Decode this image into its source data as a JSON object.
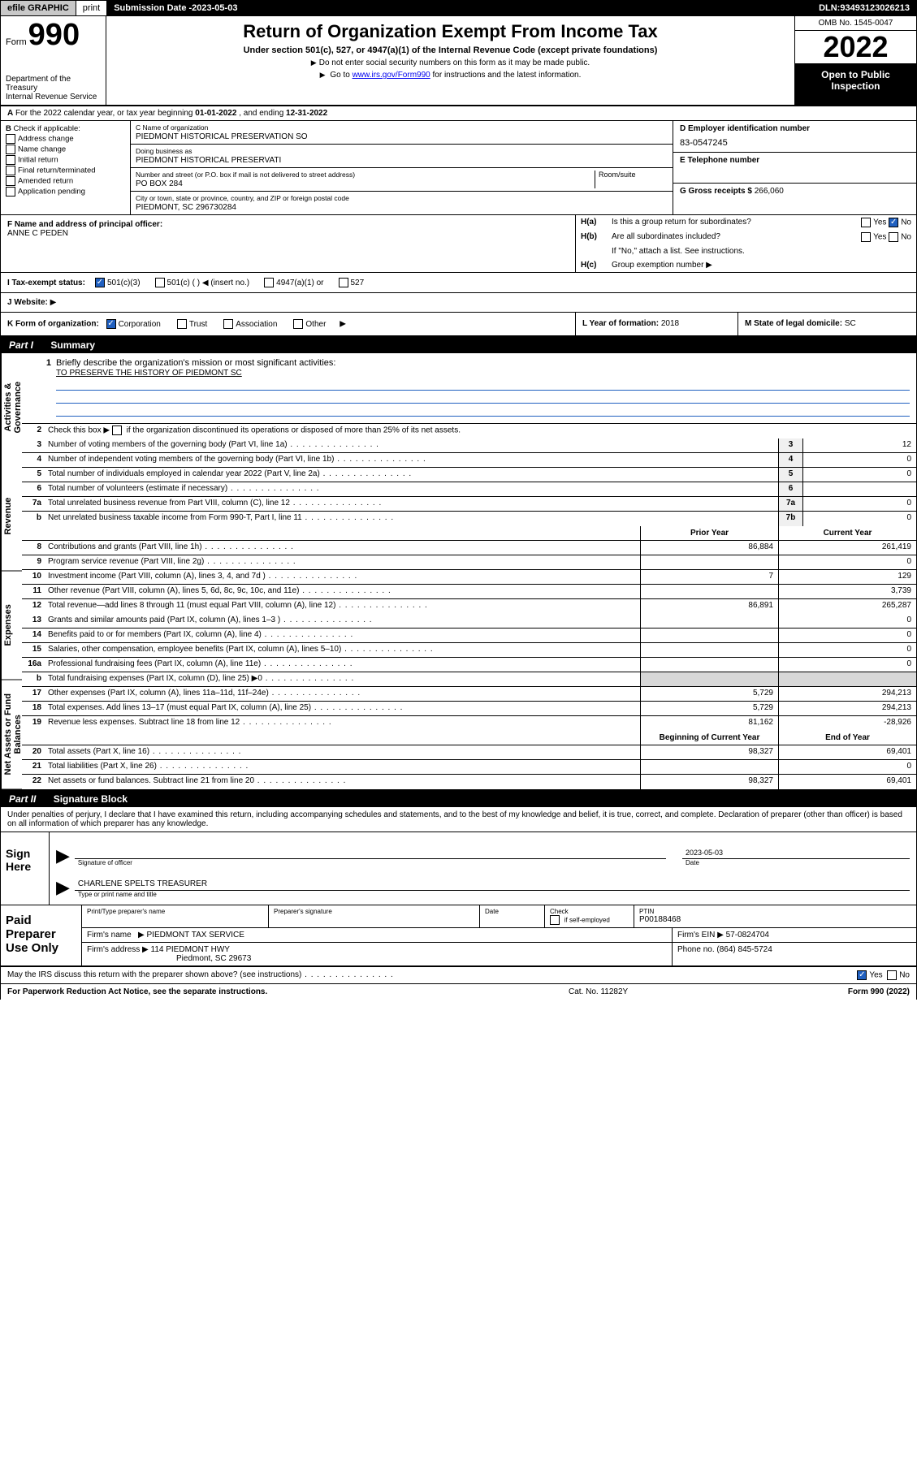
{
  "topbar": {
    "efile": "efile GRAPHIC",
    "print": "print",
    "submission_label": "Submission Date - ",
    "submission_date": "2023-05-03",
    "dln_label": "DLN: ",
    "dln": "93493123026213"
  },
  "header": {
    "form_word": "Form",
    "form_number": "990",
    "dept": "Department of the Treasury\nInternal Revenue Service",
    "title": "Return of Organization Exempt From Income Tax",
    "subtitle": "Under section 501(c), 527, or 4947(a)(1) of the Internal Revenue Code (except private foundations)",
    "note1": "Do not enter social security numbers on this form as it may be made public.",
    "note2_pre": "Go to ",
    "note2_link": "www.irs.gov/Form990",
    "note2_post": " for instructions and the latest information.",
    "omb": "OMB No. 1545-0047",
    "year": "2022",
    "open_public": "Open to Public Inspection"
  },
  "sectionA": {
    "text_pre": "For the 2022 calendar year, or tax year beginning ",
    "begin": "01-01-2022",
    "text_mid": " , and ending ",
    "end": "12-31-2022",
    "lead": "A"
  },
  "sectionB": {
    "lead": "B",
    "label": "Check if applicable:",
    "items": [
      "Address change",
      "Name change",
      "Initial return",
      "Final return/terminated",
      "Amended return",
      "Application pending"
    ]
  },
  "sectionC": {
    "name_lbl": "C Name of organization",
    "name": "PIEDMONT HISTORICAL PRESERVATION SO",
    "dba_lbl": "Doing business as",
    "dba": "PIEDMONT HISTORICAL PRESERVATI",
    "addr_lbl": "Number and street (or P.O. box if mail is not delivered to street address)",
    "room_lbl": "Room/suite",
    "addr": "PO BOX 284",
    "city_lbl": "City or town, state or province, country, and ZIP or foreign postal code",
    "city": "PIEDMONT, SC  296730284"
  },
  "sectionD": {
    "lbl": "D Employer identification number",
    "val": "83-0547245"
  },
  "sectionE": {
    "lbl": "E Telephone number",
    "val": ""
  },
  "sectionG": {
    "lbl": "G Gross receipts $",
    "val": "266,060"
  },
  "sectionF": {
    "lbl": "F  Name and address of principal officer:",
    "name": "ANNE C PEDEN"
  },
  "sectionH": {
    "ha_lbl": "H(a)",
    "ha_txt": "Is this a group return for subordinates?",
    "hb_lbl": "H(b)",
    "hb_txt": "Are all subordinates included?",
    "hb_note": "If \"No,\" attach a list. See instructions.",
    "hc_lbl": "H(c)",
    "hc_txt": "Group exemption number",
    "yes": "Yes",
    "no": "No",
    "ha_no_checked": true
  },
  "sectionI": {
    "lbl": "I  Tax-exempt status:",
    "opts": [
      "501(c)(3)",
      "501(c) (  ) ◀ (insert no.)",
      "4947(a)(1) or",
      "527"
    ],
    "checked_idx": 0
  },
  "sectionJ": {
    "lbl": "J  Website:",
    "arrow": "▶"
  },
  "sectionK": {
    "lbl": "K Form of organization:",
    "opts": [
      "Corporation",
      "Trust",
      "Association",
      "Other"
    ],
    "checked_idx": 0,
    "arrow": "▶"
  },
  "sectionL": {
    "lbl": "L Year of formation:",
    "val": "2018"
  },
  "sectionM": {
    "lbl": "M State of legal domicile:",
    "val": "SC"
  },
  "part1": {
    "hdr_part": "Part I",
    "hdr_title": "Summary",
    "sidetabs": [
      "Activities & Governance",
      "Revenue",
      "Expenses",
      "Net Assets or Fund Balances"
    ],
    "q1_num": "1",
    "q1": "Briefly describe the organization's mission or most significant activities:",
    "q1_ans": "TO PRESERVE THE HISTORY OF PIEDMONT SC",
    "q2_num": "2",
    "q2_pre": "Check this box",
    "q2_post": "if the organization discontinued its operations or disposed of more than 25% of its net assets.",
    "rows_gov": [
      {
        "n": "3",
        "d": "Number of voting members of the governing body (Part VI, line 1a)",
        "box": "3",
        "v": "12"
      },
      {
        "n": "4",
        "d": "Number of independent voting members of the governing body (Part VI, line 1b)",
        "box": "4",
        "v": "0"
      },
      {
        "n": "5",
        "d": "Total number of individuals employed in calendar year 2022 (Part V, line 2a)",
        "box": "5",
        "v": "0"
      },
      {
        "n": "6",
        "d": "Total number of volunteers (estimate if necessary)",
        "box": "6",
        "v": ""
      },
      {
        "n": "7a",
        "d": "Total unrelated business revenue from Part VIII, column (C), line 12",
        "box": "7a",
        "v": "0"
      },
      {
        "n": "b",
        "d": "Net unrelated business taxable income from Form 990-T, Part I, line 11",
        "box": "7b",
        "v": "0"
      }
    ],
    "col_prior": "Prior Year",
    "col_current": "Current Year",
    "rows_rev": [
      {
        "n": "8",
        "d": "Contributions and grants (Part VIII, line 1h)",
        "p": "86,884",
        "c": "261,419"
      },
      {
        "n": "9",
        "d": "Program service revenue (Part VIII, line 2g)",
        "p": "",
        "c": "0"
      },
      {
        "n": "10",
        "d": "Investment income (Part VIII, column (A), lines 3, 4, and 7d )",
        "p": "7",
        "c": "129"
      },
      {
        "n": "11",
        "d": "Other revenue (Part VIII, column (A), lines 5, 6d, 8c, 9c, 10c, and 11e)",
        "p": "",
        "c": "3,739"
      },
      {
        "n": "12",
        "d": "Total revenue—add lines 8 through 11 (must equal Part VIII, column (A), line 12)",
        "p": "86,891",
        "c": "265,287"
      }
    ],
    "rows_exp": [
      {
        "n": "13",
        "d": "Grants and similar amounts paid (Part IX, column (A), lines 1–3 )",
        "p": "",
        "c": "0"
      },
      {
        "n": "14",
        "d": "Benefits paid to or for members (Part IX, column (A), line 4)",
        "p": "",
        "c": "0"
      },
      {
        "n": "15",
        "d": "Salaries, other compensation, employee benefits (Part IX, column (A), lines 5–10)",
        "p": "",
        "c": "0"
      },
      {
        "n": "16a",
        "d": "Professional fundraising fees (Part IX, column (A), line 11e)",
        "p": "",
        "c": "0"
      },
      {
        "n": "b",
        "d": "Total fundraising expenses (Part IX, column (D), line 25) ▶0",
        "p": "shade",
        "c": "shade"
      },
      {
        "n": "17",
        "d": "Other expenses (Part IX, column (A), lines 11a–11d, 11f–24e)",
        "p": "5,729",
        "c": "294,213"
      },
      {
        "n": "18",
        "d": "Total expenses. Add lines 13–17 (must equal Part IX, column (A), line 25)",
        "p": "5,729",
        "c": "294,213"
      },
      {
        "n": "19",
        "d": "Revenue less expenses. Subtract line 18 from line 12",
        "p": "81,162",
        "c": "-28,926"
      }
    ],
    "col_begin": "Beginning of Current Year",
    "col_end": "End of Year",
    "rows_net": [
      {
        "n": "20",
        "d": "Total assets (Part X, line 16)",
        "p": "98,327",
        "c": "69,401"
      },
      {
        "n": "21",
        "d": "Total liabilities (Part X, line 26)",
        "p": "",
        "c": "0"
      },
      {
        "n": "22",
        "d": "Net assets or fund balances. Subtract line 21 from line 20",
        "p": "98,327",
        "c": "69,401"
      }
    ]
  },
  "part2": {
    "hdr_part": "Part II",
    "hdr_title": "Signature Block",
    "penalties": "Under penalties of perjury, I declare that I have examined this return, including accompanying schedules and statements, and to the best of my knowledge and belief, it is true, correct, and complete. Declaration of preparer (other than officer) is based on all information of which preparer has any knowledge.",
    "sign_here": "Sign Here",
    "sig_officer_lbl": "Signature of officer",
    "sig_date_lbl": "Date",
    "sig_date": "2023-05-03",
    "officer_name": "CHARLENE SPELTS TREASURER",
    "officer_sub": "Type or print name and title"
  },
  "preparer": {
    "lbl": "Paid Preparer Use Only",
    "r1": {
      "c1_lbl": "Print/Type preparer's name",
      "c1": "",
      "c2_lbl": "Preparer's signature",
      "c2": "",
      "c3_lbl": "Date",
      "c3": "",
      "c4_lbl": "Check",
      "c4_txt": "if self-employed",
      "c5_lbl": "PTIN",
      "c5": "P00188468"
    },
    "r2": {
      "firm_lbl": "Firm's name",
      "firm": "PIEDMONT TAX SERVICE",
      "ein_lbl": "Firm's EIN",
      "ein": "57-0824704"
    },
    "r3": {
      "addr_lbl": "Firm's address",
      "addr1": "114 PIEDMONT HWY",
      "addr2": "Piedmont, SC  29673",
      "phone_lbl": "Phone no.",
      "phone": "(864) 845-5724"
    }
  },
  "discuss": {
    "q": "May the IRS discuss this return with the preparer shown above? (see instructions)",
    "yes": "Yes",
    "no": "No",
    "yes_checked": true
  },
  "footer": {
    "left": "For Paperwork Reduction Act Notice, see the separate instructions.",
    "mid": "Cat. No. 11282Y",
    "right_pre": "Form ",
    "right_num": "990",
    "right_post": " (2022)"
  }
}
